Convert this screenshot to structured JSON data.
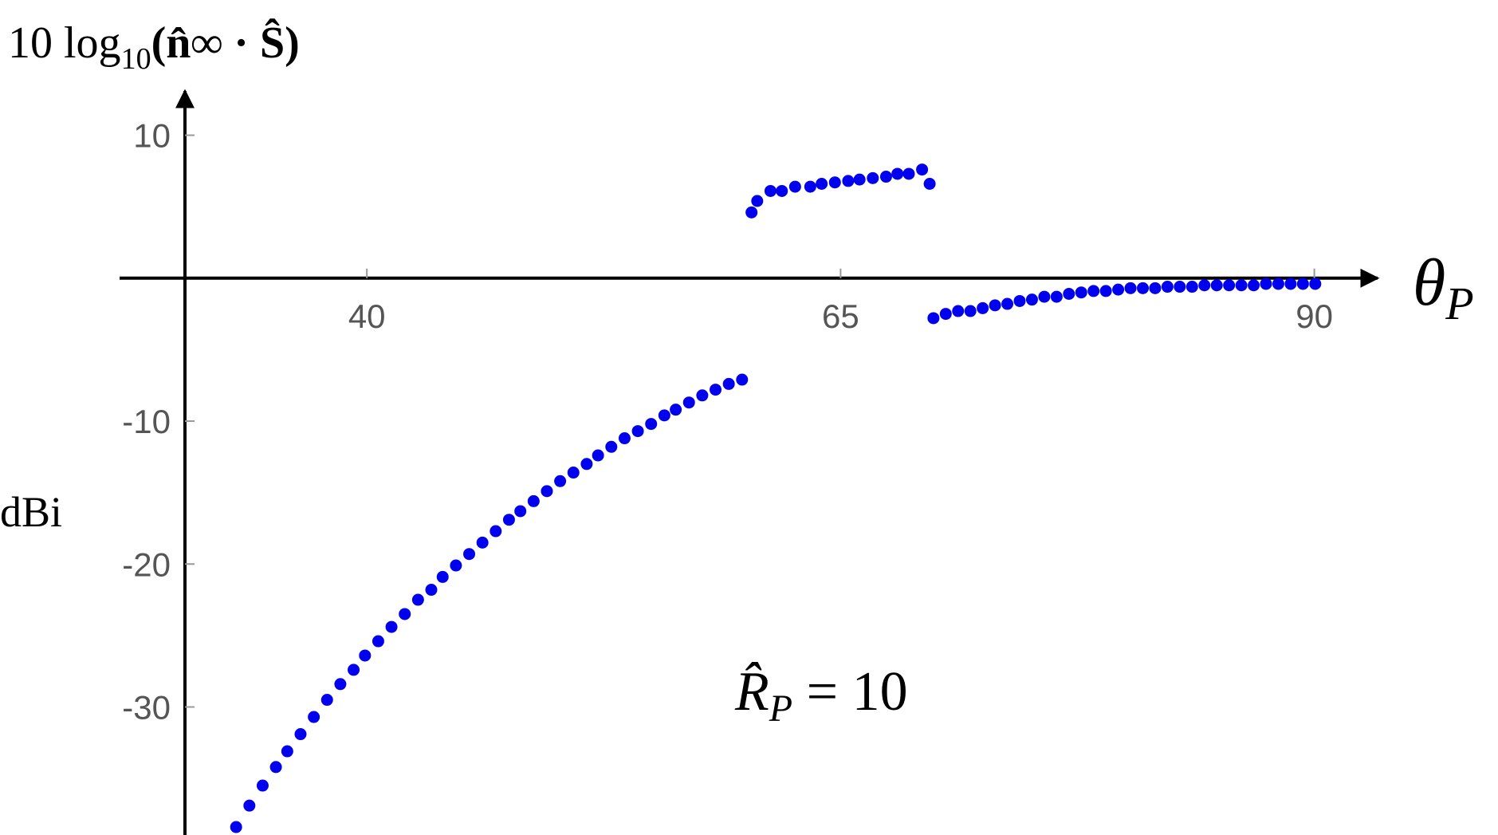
{
  "chart_data": {
    "type": "scatter",
    "y_label": {
      "text": "10 log",
      "subscript": "10",
      "rest": "(n̂∞ · Ŝ)"
    },
    "y_unit": "dBi",
    "x_label": {
      "symbol": "θ",
      "subscript": "P"
    },
    "annotation": {
      "symbol": "R̂",
      "subscript": "P",
      "text": " = 10"
    },
    "color": "#0000ee",
    "x": [
      33.1,
      33.8,
      34.5,
      35.2,
      35.8,
      36.5,
      37.2,
      37.9,
      38.6,
      39.3,
      39.9,
      40.6,
      41.3,
      42.0,
      42.7,
      43.4,
      44.0,
      44.7,
      45.4,
      46.1,
      46.8,
      47.5,
      48.1,
      48.8,
      49.5,
      50.2,
      50.9,
      51.6,
      52.2,
      52.9,
      53.6,
      54.3,
      55.0,
      55.7,
      56.3,
      57.0,
      57.7,
      58.4,
      59.1,
      59.8,
      60.3,
      60.6,
      61.3,
      61.9,
      62.6,
      63.4,
      64.0,
      64.7,
      65.4,
      66.0,
      66.7,
      67.4,
      68.0,
      68.6,
      69.3,
      69.7,
      69.9,
      70.55,
      71.2,
      71.85,
      72.5,
      73.15,
      73.8,
      74.45,
      75.1,
      75.75,
      76.4,
      77.05,
      77.7,
      78.35,
      79.0,
      79.65,
      80.3,
      80.95,
      81.6,
      82.25,
      82.9,
      83.55,
      84.2,
      84.85,
      85.5,
      86.15,
      86.8,
      87.45,
      88.1,
      88.75,
      89.4,
      90.05
    ],
    "values": [
      -38.4,
      -36.9,
      -35.5,
      -34.2,
      -33.1,
      -31.9,
      -30.7,
      -29.5,
      -28.4,
      -27.4,
      -26.4,
      -25.4,
      -24.4,
      -23.5,
      -22.5,
      -21.8,
      -20.9,
      -20.1,
      -19.3,
      -18.5,
      -17.7,
      -16.9,
      -16.3,
      -15.6,
      -14.9,
      -14.2,
      -13.6,
      -13.0,
      -12.4,
      -11.8,
      -11.2,
      -10.7,
      -10.2,
      -9.6,
      -9.2,
      -8.7,
      -8.2,
      -7.8,
      -7.4,
      -7.1,
      4.6,
      5.4,
      6.1,
      6.1,
      6.4,
      6.4,
      6.6,
      6.7,
      6.8,
      6.9,
      7.0,
      7.1,
      7.3,
      7.3,
      7.6,
      6.6,
      -2.8,
      -2.5,
      -2.3,
      -2.3,
      -2.1,
      -1.9,
      -1.8,
      -1.6,
      -1.5,
      -1.3,
      -1.3,
      -1.1,
      -1.0,
      -0.9,
      -0.9,
      -0.8,
      -0.7,
      -0.7,
      -0.7,
      -0.6,
      -0.6,
      -0.6,
      -0.5,
      -0.5,
      -0.5,
      -0.5,
      -0.5,
      -0.4,
      -0.4,
      -0.4,
      -0.4,
      -0.4
    ],
    "xlim": [
      30.4,
      90.9
    ],
    "ylim": [
      -38.9,
      13.1
    ],
    "xticks": [
      40,
      65,
      90
    ],
    "yticks": [
      -30,
      -20,
      -10,
      10
    ]
  }
}
